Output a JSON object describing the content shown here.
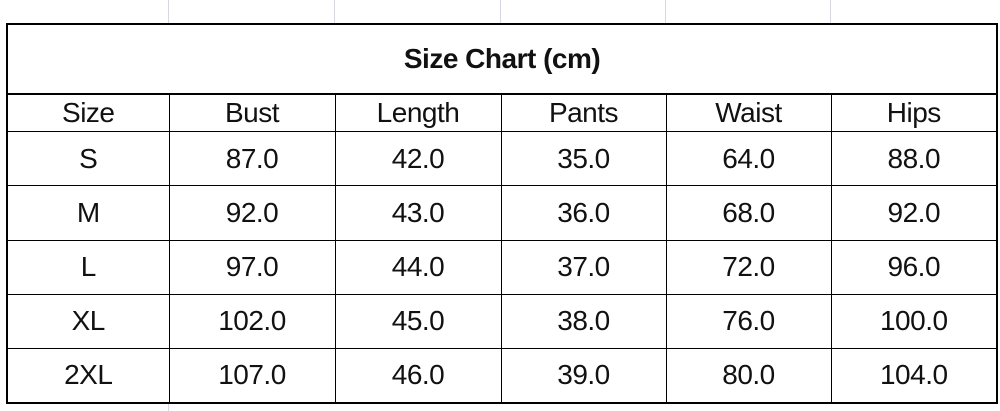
{
  "title": "Size Chart (cm)",
  "columns": [
    "Size",
    "Bust",
    "Length",
    "Pants",
    "Waist",
    "Hips"
  ],
  "rows": [
    [
      "S",
      "87.0",
      "42.0",
      "35.0",
      "64.0",
      "88.0"
    ],
    [
      "M",
      "92.0",
      "43.0",
      "36.0",
      "68.0",
      "92.0"
    ],
    [
      "L",
      "97.0",
      "44.0",
      "37.0",
      "72.0",
      "96.0"
    ],
    [
      "XL",
      "102.0",
      "45.0",
      "38.0",
      "76.0",
      "100.0"
    ],
    [
      "2XL",
      "107.0",
      "46.0",
      "39.0",
      "80.0",
      "104.0"
    ]
  ]
}
